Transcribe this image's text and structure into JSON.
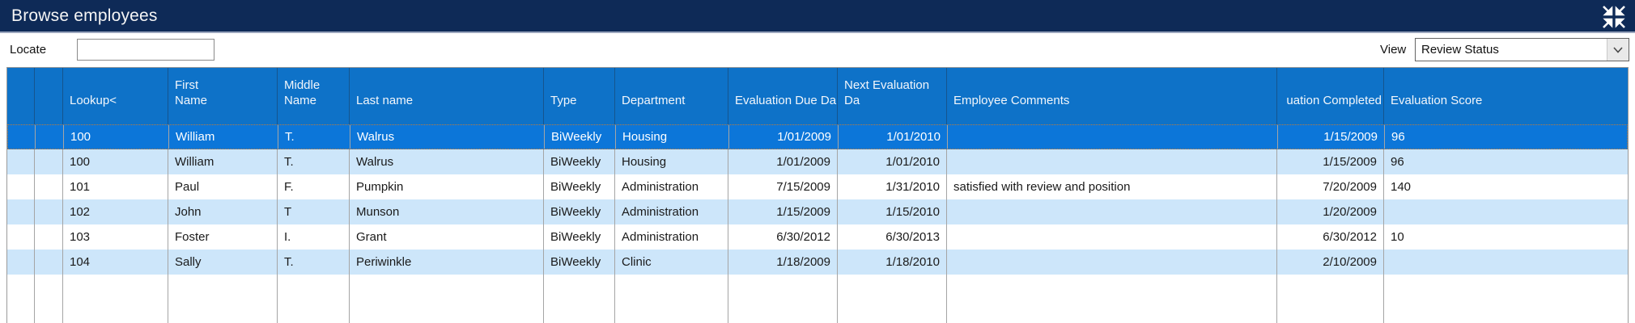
{
  "window": {
    "title": "Browse employees"
  },
  "toolbar": {
    "locate_label": "Locate",
    "locate_value": "",
    "view_label": "View",
    "view_value": "Review Status"
  },
  "icons": {
    "titlebar_right": "collapse-arrows-icon",
    "combo_button": "chevron-down-icon"
  },
  "colors": {
    "titlebar_bg": "#0e2a57",
    "header_bg": "#0e72c8",
    "selected_row_bg": "#0c76d9",
    "stripe_light": "#cde6fa",
    "stripe_white": "#ffffff",
    "selection_dots": "#b97b3c",
    "gridline": "#a5a5a5"
  },
  "grid": {
    "columns": [
      {
        "key": "selector-a",
        "label": ""
      },
      {
        "key": "selector-b",
        "label": ""
      },
      {
        "key": "lookup",
        "label": "Lookup<"
      },
      {
        "key": "first-name",
        "label": "First\nName"
      },
      {
        "key": "middle-name",
        "label": "Middle\nName"
      },
      {
        "key": "last-name",
        "label": "Last name"
      },
      {
        "key": "type",
        "label": "Type"
      },
      {
        "key": "department",
        "label": "Department"
      },
      {
        "key": "evaluation-due-date",
        "label": "Evaluation Due Da"
      },
      {
        "key": "next-evaluation-date",
        "label": "Next Evaluation Da"
      },
      {
        "key": "employee-comments",
        "label": "Employee Comments"
      },
      {
        "key": "evaluation-completed",
        "label": "uation Completed"
      },
      {
        "key": "evaluation-score",
        "label": "Evaluation Score"
      }
    ],
    "rows": [
      {
        "selected": true,
        "cells": [
          "",
          "",
          "100",
          "William",
          "T.",
          "Walrus",
          "BiWeekly",
          "Housing",
          "1/01/2009",
          "1/01/2010",
          "",
          "1/15/2009",
          "96"
        ]
      },
      {
        "selected": false,
        "cells": [
          "",
          "",
          "100",
          "William",
          "T.",
          "Walrus",
          "BiWeekly",
          "Housing",
          "1/01/2009",
          "1/01/2010",
          "",
          "1/15/2009",
          "96"
        ]
      },
      {
        "selected": false,
        "cells": [
          "",
          "",
          "101",
          "Paul",
          "F.",
          "Pumpkin",
          "BiWeekly",
          "Administration",
          "7/15/2009",
          "1/31/2010",
          "satisfied with review and position",
          "7/20/2009",
          "140"
        ]
      },
      {
        "selected": false,
        "cells": [
          "",
          "",
          "102",
          "John",
          "T",
          "Munson",
          "BiWeekly",
          "Administration",
          "1/15/2009",
          "1/15/2010",
          "",
          "1/20/2009",
          ""
        ]
      },
      {
        "selected": false,
        "cells": [
          "",
          "",
          "103",
          "Foster",
          "I.",
          "Grant",
          "BiWeekly",
          "Administration",
          "6/30/2012",
          "6/30/2013",
          "",
          "6/30/2012",
          "10"
        ]
      },
      {
        "selected": false,
        "cells": [
          "",
          "",
          "104",
          "Sally",
          "T.",
          "Periwinkle",
          "BiWeekly",
          "Clinic",
          "1/18/2009",
          "1/18/2010",
          "",
          "2/10/2009",
          ""
        ]
      }
    ]
  }
}
